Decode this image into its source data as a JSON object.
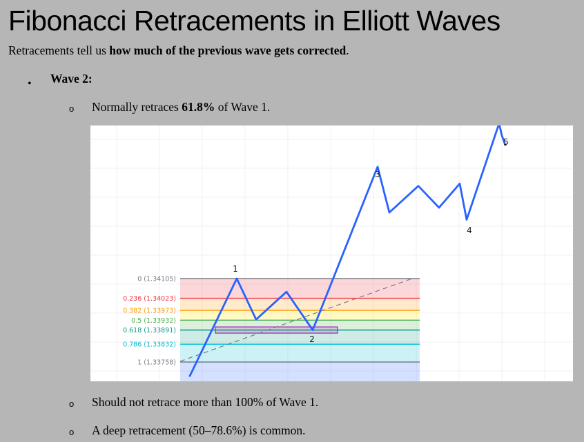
{
  "title": "Fibonacci Retracements in Elliott Waves",
  "intro": {
    "prefix": "Retracements tell us ",
    "bold": "how much of the previous wave gets corrected",
    "suffix": "."
  },
  "bullet": {
    "marker": "•",
    "label": "Wave 2:"
  },
  "sub_marker": "o",
  "sub_points": {
    "first_prefix": "Normally retraces ",
    "first_bold": "61.8%",
    "first_suffix": " of Wave 1.",
    "second": "Should not retrace more than 100% of Wave 1.",
    "third": "A deep retracement (50–78.6%) is common."
  },
  "chart_data": {
    "type": "line",
    "fib_levels": [
      {
        "label": "0 (1.34105)",
        "ratio": 0,
        "price": 1.34105,
        "color": "#787b86"
      },
      {
        "label": "0.236 (1.34023)",
        "ratio": 0.236,
        "price": 1.34023,
        "color": "#f23645"
      },
      {
        "label": "0.382 (1.33973)",
        "ratio": 0.382,
        "price": 1.33973,
        "color": "#ff9800"
      },
      {
        "label": "0.5 (1.33932)",
        "ratio": 0.5,
        "price": 1.33932,
        "color": "#4caf50"
      },
      {
        "label": "0.618 (1.33891)",
        "ratio": 0.618,
        "price": 1.33891,
        "color": "#089981"
      },
      {
        "label": "0.786 (1.33832)",
        "ratio": 0.786,
        "price": 1.33832,
        "color": "#00bcd4"
      },
      {
        "label": "1 (1.33758)",
        "ratio": 1,
        "price": 1.33758,
        "color": "#787b86"
      }
    ],
    "wave_labels": [
      {
        "label": "1",
        "price": 1.34105
      },
      {
        "label": "2",
        "price": 1.33891
      },
      {
        "label": "3",
        "price": 1.3457
      },
      {
        "label": "4",
        "price": 1.3435
      },
      {
        "label": "5",
        "price": 1.3475
      }
    ],
    "path_prices": [
      1.337,
      1.34105,
      1.33935,
      1.3405,
      1.33891,
      1.3457,
      1.3438,
      1.3449,
      1.344,
      1.345,
      1.3435,
      1.3475,
      1.347,
      1.3466
    ],
    "line_color": "#2962ff",
    "grid": true
  }
}
